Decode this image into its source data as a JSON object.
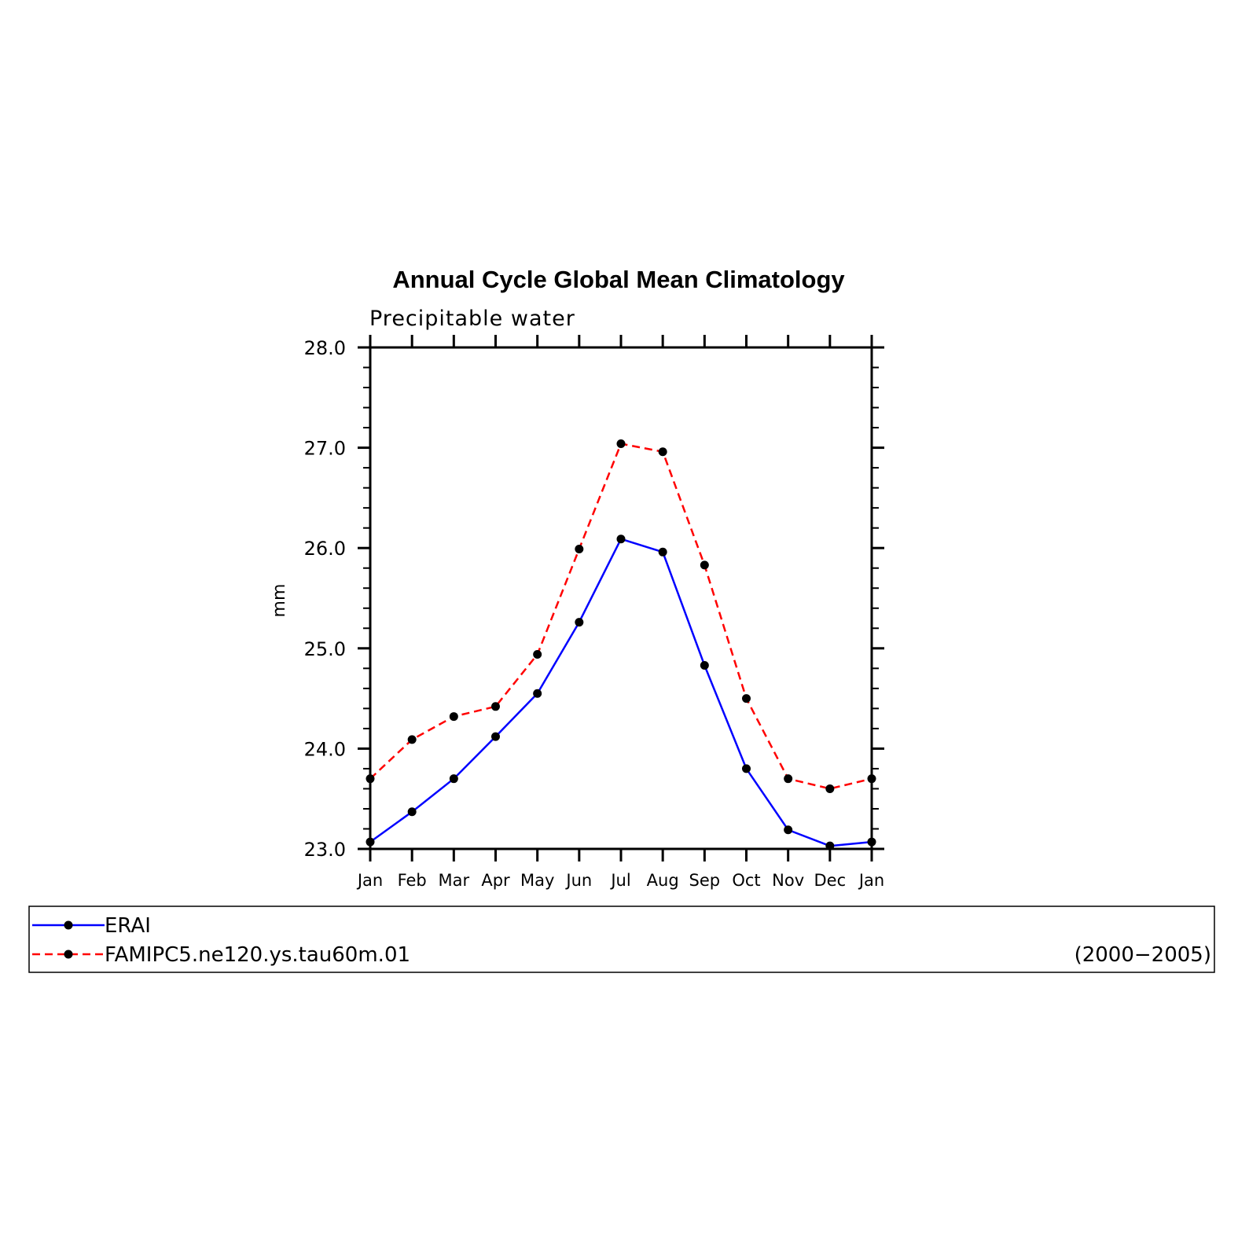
{
  "chart_data": {
    "type": "line",
    "title": "Annual Cycle Global Mean Climatology",
    "subtitle": "Precipitable water",
    "ylabel": "mm",
    "xlabel": "",
    "ylim": [
      23.0,
      28.0
    ],
    "yticks": [
      "23.0",
      "24.0",
      "25.0",
      "26.0",
      "27.0",
      "28.0"
    ],
    "categories": [
      "Jan",
      "Feb",
      "Mar",
      "Apr",
      "May",
      "Jun",
      "Jul",
      "Aug",
      "Sep",
      "Oct",
      "Nov",
      "Dec",
      "Jan"
    ],
    "grid": false,
    "legend_position": "bottom",
    "series": [
      {
        "name": "ERAI",
        "color": "#0000ff",
        "dash": "solid",
        "values": [
          23.07,
          23.37,
          23.7,
          24.12,
          24.55,
          25.26,
          26.09,
          25.96,
          24.83,
          23.8,
          23.19,
          23.03,
          23.07
        ]
      },
      {
        "name": "FAMIPC5.ne120.ys.tau60m.01",
        "color": "#ff0000",
        "dash": "dashed",
        "values": [
          23.7,
          24.09,
          24.32,
          24.42,
          24.94,
          25.99,
          27.04,
          26.96,
          25.83,
          24.5,
          23.7,
          23.6,
          23.7
        ]
      }
    ],
    "legend_note": "(2000−2005)"
  }
}
